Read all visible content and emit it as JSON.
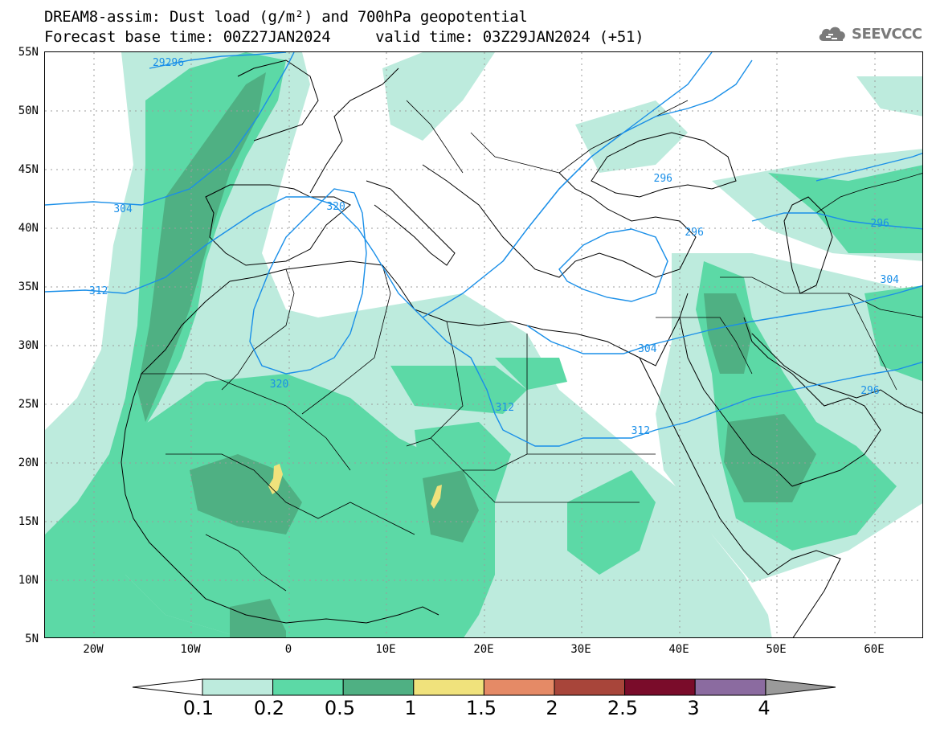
{
  "header": {
    "title_line1": "DREAM8-assim: Dust load (g/m²) and 700hPa geopotential",
    "title_line2": "Forecast base time: 00Z27JAN2024     valid time: 03Z29JAN2024 (+51)"
  },
  "logo": {
    "text": "SEEVCCC",
    "icon": "cloud-icon",
    "color": "#7a7a7a"
  },
  "axes": {
    "lat_labels": [
      "55N",
      "50N",
      "45N",
      "40N",
      "35N",
      "30N",
      "25N",
      "20N",
      "15N",
      "10N",
      "5N"
    ],
    "lon_labels": [
      "20W",
      "10W",
      "0",
      "10E",
      "20E",
      "30E",
      "40E",
      "50E",
      "60E"
    ]
  },
  "contour_labels": [
    {
      "text": "29296",
      "lon": -12.5,
      "lat": 54.0
    },
    {
      "text": "304",
      "lon": -16.5,
      "lat": 41.5
    },
    {
      "text": "312",
      "lon": -19.0,
      "lat": 34.5
    },
    {
      "text": "320",
      "lon": 5.3,
      "lat": 41.7
    },
    {
      "text": "320",
      "lon": -0.5,
      "lat": 26.6
    },
    {
      "text": "312",
      "lon": 22.6,
      "lat": 24.6
    },
    {
      "text": "312",
      "lon": 36.5,
      "lat": 22.6
    },
    {
      "text": "304",
      "lon": 37.2,
      "lat": 29.6
    },
    {
      "text": "304",
      "lon": 62.0,
      "lat": 35.5
    },
    {
      "text": "296",
      "lon": 61.0,
      "lat": 40.3
    },
    {
      "text": "296",
      "lon": 60.0,
      "lat": 26.0
    },
    {
      "text": "296",
      "lon": 42.0,
      "lat": 39.5
    },
    {
      "text": "296",
      "lon": 38.8,
      "lat": 44.1
    }
  ],
  "colorbar": {
    "labels": [
      "0.1",
      "0.2",
      "0.5",
      "1",
      "1.5",
      "2",
      "2.5",
      "3",
      "4"
    ],
    "colors": [
      "#bdebdd",
      "#5cd9a6",
      "#4fb083",
      "#f0e27c",
      "#e58a66",
      "#a8453a",
      "#7a0c2a",
      "#8b6ba0"
    ],
    "under_color": "#ffffff",
    "over_color": "#9a9a9a"
  },
  "colors": {
    "contour": "#1a8fe8",
    "coast": "#000000",
    "dust_01": "#bdebdd",
    "dust_02": "#5cd9a6",
    "dust_05": "#4fb083",
    "dust_1": "#f0e27c"
  }
}
